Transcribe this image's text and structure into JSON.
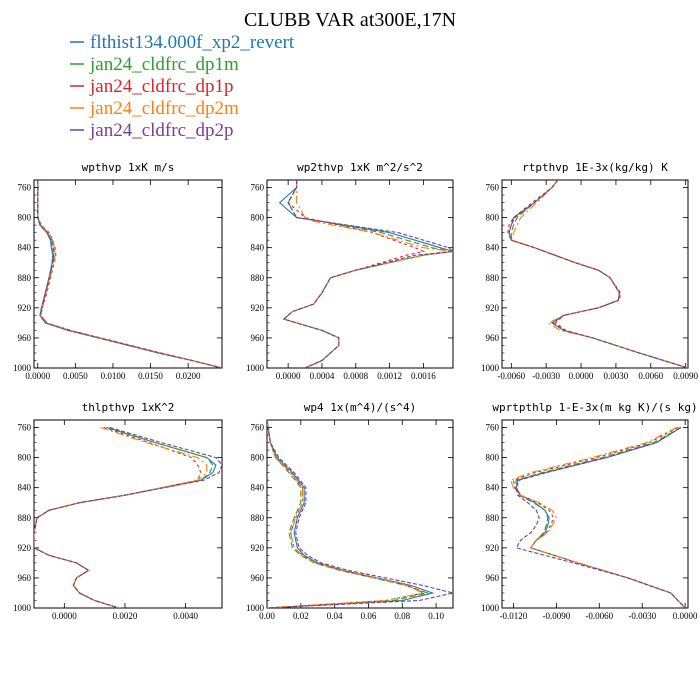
{
  "figure_title": "CLUBB VAR at300E,17N",
  "legend": [
    {
      "label": "flthist134.000f_xp2_revert",
      "color": "#1f77b4"
    },
    {
      "label": "jan24_cldfrc_dp1m",
      "color": "#2ca02c"
    },
    {
      "label": "jan24_cldfrc_dp1p",
      "color": "#d62728"
    },
    {
      "label": "jan24_cldfrc_dp2m",
      "color": "#ff7f0e"
    },
    {
      "label": "jan24_cldfrc_dp2p",
      "color": "#7d3c98"
    }
  ],
  "chart_data": [
    {
      "type": "line",
      "title": "wpthvp  1xK m/s",
      "xlim": [
        -0.0005,
        0.0245
      ],
      "ylim": [
        1000,
        750
      ],
      "xticks": [
        0.0,
        0.005,
        0.01,
        0.015,
        0.02
      ],
      "xtick_labels": [
        "0.0000",
        "0.0050",
        "0.0100",
        "0.0150",
        "0.0200"
      ],
      "yticks": [
        760,
        800,
        840,
        880,
        920,
        960,
        1000
      ],
      "y": [
        750,
        780,
        800,
        810,
        820,
        830,
        840,
        850,
        860,
        880,
        900,
        920,
        930,
        940,
        950,
        960,
        970,
        980,
        990,
        1000
      ],
      "series": [
        {
          "values": [
            0.0,
            0.0,
            0.0,
            0.0003,
            0.0012,
            0.0017,
            0.0018,
            0.002,
            0.0019,
            0.0015,
            0.001,
            0.0005,
            0.0003,
            0.001,
            0.004,
            0.008,
            0.012,
            0.016,
            0.0205,
            0.0245
          ]
        },
        {
          "values": [
            0.0,
            0.0,
            0.0,
            0.0004,
            0.0013,
            0.0019,
            0.0021,
            0.0022,
            0.002,
            0.0016,
            0.0011,
            0.0006,
            0.0004,
            0.0011,
            0.0042,
            0.0082,
            0.0122,
            0.0162,
            0.0205,
            0.0245
          ]
        },
        {
          "values": [
            0.0,
            0.0,
            0.0,
            0.0005,
            0.0015,
            0.002,
            0.0023,
            0.0024,
            0.0022,
            0.0017,
            0.0012,
            0.0006,
            0.0003,
            0.0012,
            0.0044,
            0.0084,
            0.0124,
            0.0164,
            0.0206,
            0.0245
          ]
        },
        {
          "values": [
            0.0,
            0.0,
            0.0,
            0.0004,
            0.0014,
            0.002,
            0.0022,
            0.0023,
            0.0021,
            0.0016,
            0.0011,
            0.0005,
            0.0004,
            0.0013,
            0.0043,
            0.0083,
            0.0123,
            0.0163,
            0.0205,
            0.0245
          ]
        },
        {
          "values": [
            0.0,
            0.0,
            0.0,
            0.0003,
            0.0012,
            0.0018,
            0.002,
            0.0021,
            0.002,
            0.0015,
            0.001,
            0.0005,
            0.0003,
            0.001,
            0.0041,
            0.0081,
            0.0121,
            0.0161,
            0.0205,
            0.0245
          ]
        }
      ]
    },
    {
      "type": "line",
      "title": "wp2thvp  1xK m^2/s^2",
      "xlim": [
        -0.00025,
        0.00195
      ],
      "ylim": [
        1000,
        750
      ],
      "xticks": [
        0.0,
        0.0004,
        0.0008,
        0.0012,
        0.0016
      ],
      "xtick_labels": [
        "0.0000",
        "0.0004",
        "0.0008",
        "0.0012",
        "0.0016"
      ],
      "yticks": [
        760,
        800,
        840,
        880,
        920,
        960,
        1000
      ],
      "y": [
        750,
        760,
        780,
        800,
        805,
        820,
        840,
        845,
        850,
        870,
        880,
        900,
        915,
        925,
        935,
        940,
        950,
        960,
        970,
        980,
        990,
        1000
      ],
      "series": [
        {
          "values": [
            0.0001,
            0.0001,
            -0.0001,
            0.0001,
            0.0004,
            0.0012,
            0.0018,
            0.00195,
            0.0016,
            0.0008,
            0.0005,
            0.0004,
            0.0003,
            5e-05,
            -5e-05,
            0.0001,
            0.0004,
            0.0006,
            0.0006,
            0.0005,
            0.0004,
            0.0002
          ]
        },
        {
          "values": [
            0.0001,
            0.0001,
            0.0,
            0.0001,
            0.0004,
            0.0011,
            0.0017,
            0.00195,
            0.0016,
            0.0008,
            0.0005,
            0.0004,
            0.0003,
            5e-05,
            -5e-05,
            0.0001,
            0.0004,
            0.0006,
            0.0006,
            0.0005,
            0.0004,
            0.0002
          ]
        },
        {
          "values": [
            0.0001,
            0.0001,
            0.0,
            0.0002,
            0.0004,
            0.001,
            0.0015,
            0.0016,
            0.0014,
            0.0008,
            0.0005,
            0.0004,
            0.0003,
            5e-05,
            -5e-05,
            0.0001,
            0.0004,
            0.0006,
            0.0006,
            0.0005,
            0.0004,
            0.0002
          ]
        },
        {
          "values": [
            0.0001,
            0.0001,
            0.0001,
            0.0002,
            0.0003,
            0.001,
            0.0016,
            0.00195,
            0.0016,
            0.0008,
            0.0005,
            0.0004,
            0.0003,
            5e-05,
            -5e-05,
            0.0001,
            0.0004,
            0.0006,
            0.0006,
            0.0005,
            0.0004,
            0.0002
          ]
        },
        {
          "values": [
            0.0001,
            0.0001,
            0.0,
            0.0001,
            0.0004,
            0.0013,
            0.0019,
            0.00195,
            0.0015,
            0.0008,
            0.0005,
            0.0004,
            0.0003,
            5e-05,
            -5e-05,
            0.0001,
            0.0004,
            0.0006,
            0.0006,
            0.0005,
            0.0004,
            0.0002
          ]
        }
      ]
    },
    {
      "type": "line",
      "title": "rtpthvp  1E-3x(kg/kg) K",
      "xlim": [
        -0.0068,
        0.0092
      ],
      "ylim": [
        1000,
        750
      ],
      "xticks": [
        -0.006,
        -0.003,
        0.0,
        0.003,
        0.006,
        0.009
      ],
      "xtick_labels": [
        "-0.0060",
        "-0.0030",
        "0.0000",
        "0.0030",
        "0.0060",
        "0.0090"
      ],
      "yticks": [
        760,
        800,
        840,
        880,
        920,
        960,
        1000
      ],
      "y": [
        750,
        760,
        780,
        800,
        810,
        820,
        830,
        840,
        860,
        870,
        880,
        900,
        910,
        920,
        930,
        940,
        950,
        960,
        980,
        1000
      ],
      "series": [
        {
          "values": [
            -0.002,
            -0.0025,
            -0.004,
            -0.0058,
            -0.006,
            -0.0062,
            -0.006,
            -0.004,
            -0.0005,
            0.0015,
            0.0025,
            0.0033,
            0.0032,
            0.0015,
            -0.0015,
            -0.0025,
            -0.0015,
            0.001,
            0.005,
            0.0092
          ]
        },
        {
          "values": [
            -0.002,
            -0.0025,
            -0.004,
            -0.0055,
            -0.0058,
            -0.006,
            -0.006,
            -0.004,
            -0.0005,
            0.0015,
            0.0025,
            0.0033,
            0.0032,
            0.0015,
            -0.0015,
            -0.0025,
            -0.0015,
            0.001,
            0.005,
            0.0092
          ]
        },
        {
          "values": [
            -0.002,
            -0.0025,
            -0.0042,
            -0.0058,
            -0.0062,
            -0.0063,
            -0.006,
            -0.004,
            -0.0005,
            0.0015,
            0.0025,
            0.0034,
            0.0033,
            0.0015,
            -0.0015,
            -0.0022,
            -0.0013,
            0.001,
            0.005,
            0.0092
          ]
        },
        {
          "values": [
            -0.002,
            -0.0025,
            -0.0038,
            -0.0052,
            -0.0055,
            -0.0058,
            -0.006,
            -0.004,
            -0.0005,
            0.0015,
            0.0025,
            0.0033,
            0.0032,
            0.0015,
            -0.0015,
            -0.0028,
            -0.0018,
            0.001,
            0.005,
            0.0092
          ]
        },
        {
          "values": [
            -0.002,
            -0.0025,
            -0.004,
            -0.0057,
            -0.006,
            -0.0062,
            -0.006,
            -0.004,
            -0.0005,
            0.0015,
            0.0025,
            0.0033,
            0.0032,
            0.0015,
            -0.0015,
            -0.0024,
            -0.0014,
            0.001,
            0.005,
            0.0092
          ]
        }
      ]
    },
    {
      "type": "line",
      "title": "thlpthvp  1xK^2",
      "xlim": [
        -0.001,
        0.0052
      ],
      "ylim": [
        1000,
        750
      ],
      "xticks": [
        0.0,
        0.002,
        0.004
      ],
      "xtick_labels": [
        "0.0000",
        "0.0020",
        "0.0040"
      ],
      "yticks": [
        760,
        800,
        840,
        880,
        920,
        960,
        1000
      ],
      "y": [
        760,
        780,
        800,
        810,
        820,
        830,
        850,
        860,
        870,
        880,
        900,
        920,
        930,
        940,
        950,
        960,
        970,
        980,
        990,
        1000,
        1005
      ],
      "series": [
        {
          "values": [
            0.0014,
            0.003,
            0.0047,
            0.005,
            0.0049,
            0.0045,
            0.002,
            0.0005,
            -0.0005,
            -0.0009,
            -0.001,
            -0.001,
            -0.0005,
            0.0004,
            0.0008,
            0.0004,
            0.0003,
            0.0005,
            0.001,
            0.0018,
            0.0023
          ]
        },
        {
          "values": [
            0.0014,
            0.003,
            0.0047,
            0.0049,
            0.0048,
            0.0045,
            0.002,
            0.0005,
            -0.0005,
            -0.0009,
            -0.001,
            -0.001,
            -0.0005,
            0.0004,
            0.0008,
            0.0004,
            0.0003,
            0.0005,
            0.001,
            0.0018,
            0.0023
          ]
        },
        {
          "values": [
            0.0013,
            0.0028,
            0.0042,
            0.0044,
            0.0045,
            0.0044,
            0.002,
            0.0005,
            -0.0005,
            -0.0009,
            -0.001,
            -0.001,
            -0.0005,
            0.0004,
            0.0008,
            0.0004,
            0.0003,
            0.0005,
            0.001,
            0.0018,
            0.0023
          ]
        },
        {
          "values": [
            0.0012,
            0.0027,
            0.0044,
            0.0047,
            0.0047,
            0.0044,
            0.002,
            0.0005,
            -0.0005,
            -0.0009,
            -0.001,
            -0.001,
            -0.0005,
            0.0004,
            0.0008,
            0.0004,
            0.0003,
            0.0005,
            0.001,
            0.0018,
            0.0023
          ]
        },
        {
          "values": [
            0.0015,
            0.0032,
            0.005,
            0.0052,
            0.0051,
            0.0046,
            0.002,
            0.0005,
            -0.0005,
            -0.0009,
            -0.001,
            -0.001,
            -0.0005,
            0.0004,
            0.0008,
            0.0004,
            0.0003,
            0.0005,
            0.001,
            0.0018,
            0.0023
          ]
        }
      ]
    },
    {
      "type": "line",
      "title": "wp4  1x(m^4)/(s^4)",
      "xlim": [
        0.0,
        0.11
      ],
      "ylim": [
        1000,
        750
      ],
      "xticks": [
        0.0,
        0.02,
        0.04,
        0.06,
        0.08,
        0.1
      ],
      "xtick_labels": [
        "0.00",
        "0.02",
        "0.04",
        "0.06",
        "0.08",
        "0.10"
      ],
      "yticks": [
        760,
        800,
        840,
        880,
        920,
        960,
        1000
      ],
      "y": [
        750,
        780,
        800,
        820,
        840,
        860,
        880,
        900,
        920,
        930,
        940,
        950,
        960,
        970,
        980,
        990,
        1000
      ],
      "series": [
        {
          "values": [
            0.0,
            0.002,
            0.006,
            0.015,
            0.022,
            0.022,
            0.018,
            0.016,
            0.018,
            0.022,
            0.03,
            0.045,
            0.065,
            0.085,
            0.098,
            0.08,
            0.0
          ]
        },
        {
          "values": [
            0.0,
            0.002,
            0.005,
            0.013,
            0.02,
            0.02,
            0.016,
            0.013,
            0.015,
            0.02,
            0.028,
            0.043,
            0.063,
            0.082,
            0.095,
            0.075,
            0.0
          ]
        },
        {
          "values": [
            0.0,
            0.002,
            0.005,
            0.014,
            0.021,
            0.021,
            0.017,
            0.014,
            0.016,
            0.021,
            0.029,
            0.044,
            0.064,
            0.083,
            0.093,
            0.07,
            0.0
          ]
        },
        {
          "values": [
            0.0,
            0.002,
            0.005,
            0.014,
            0.021,
            0.021,
            0.017,
            0.014,
            0.016,
            0.021,
            0.029,
            0.044,
            0.064,
            0.083,
            0.092,
            0.07,
            0.0
          ]
        },
        {
          "values": [
            0.0,
            0.002,
            0.007,
            0.016,
            0.023,
            0.023,
            0.019,
            0.017,
            0.019,
            0.024,
            0.032,
            0.048,
            0.07,
            0.092,
            0.11,
            0.09,
            0.0
          ]
        }
      ]
    },
    {
      "type": "line",
      "title": "wprtpthlp  1-E-3x(m kg K)/(s kg)",
      "xlim": [
        -0.0128,
        0.0002
      ],
      "ylim": [
        1000,
        750
      ],
      "xticks": [
        -0.012,
        -0.009,
        -0.006,
        -0.003,
        0.0
      ],
      "xtick_labels": [
        "-0.0120",
        "-0.0090",
        "-0.0060",
        "-0.0030",
        "0.0000"
      ],
      "yticks": [
        760,
        800,
        840,
        880,
        920,
        960,
        1000
      ],
      "y": [
        760,
        780,
        800,
        820,
        830,
        840,
        850,
        860,
        870,
        880,
        890,
        900,
        910,
        920,
        940,
        960,
        980,
        1000
      ],
      "series": [
        {
          "values": [
            -0.0003,
            -0.002,
            -0.0055,
            -0.0098,
            -0.0117,
            -0.0118,
            -0.0115,
            -0.0105,
            -0.0098,
            -0.0095,
            -0.0096,
            -0.0098,
            -0.0104,
            -0.0108,
            -0.0075,
            -0.004,
            -0.001,
            0.0
          ]
        },
        {
          "values": [
            -0.0003,
            -0.0022,
            -0.0058,
            -0.01,
            -0.0118,
            -0.0119,
            -0.0116,
            -0.0106,
            -0.0098,
            -0.0096,
            -0.0097,
            -0.0099,
            -0.0104,
            -0.0108,
            -0.0075,
            -0.004,
            -0.001,
            0.0
          ]
        },
        {
          "values": [
            -0.0005,
            -0.0025,
            -0.0062,
            -0.0105,
            -0.012,
            -0.0119,
            -0.0115,
            -0.0103,
            -0.0095,
            -0.0092,
            -0.0094,
            -0.0097,
            -0.0104,
            -0.0108,
            -0.0075,
            -0.004,
            -0.001,
            0.0
          ]
        },
        {
          "values": [
            -0.0006,
            -0.0027,
            -0.0065,
            -0.0108,
            -0.0122,
            -0.012,
            -0.0115,
            -0.0102,
            -0.0093,
            -0.009,
            -0.0093,
            -0.0096,
            -0.0104,
            -0.0108,
            -0.0075,
            -0.004,
            -0.001,
            0.0
          ]
        },
        {
          "values": [
            -0.0003,
            -0.002,
            -0.0055,
            -0.0097,
            -0.0116,
            -0.0118,
            -0.0117,
            -0.011,
            -0.0104,
            -0.0102,
            -0.0104,
            -0.0108,
            -0.0115,
            -0.0118,
            -0.0078,
            -0.004,
            -0.001,
            0.0
          ]
        }
      ]
    }
  ]
}
